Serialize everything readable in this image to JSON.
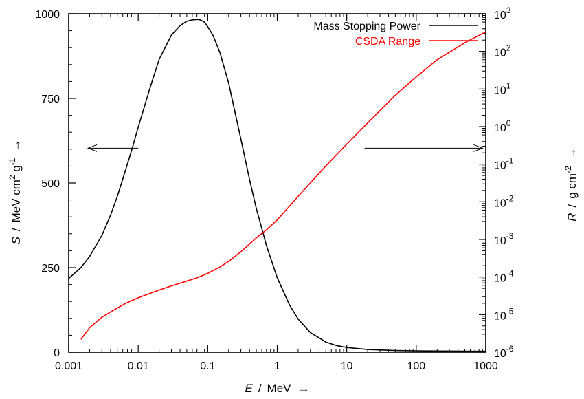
{
  "chart_data": {
    "type": "line",
    "x_scale": "log",
    "x_ticks": [
      "0.001",
      "0.01",
      "0.1",
      "1",
      "10",
      "100",
      "1000"
    ],
    "x_tick_values": [
      0.001,
      0.01,
      0.1,
      1,
      10,
      100,
      1000
    ],
    "xlim": [
      0.001,
      1000
    ],
    "ylim_left": [
      0,
      1000
    ],
    "y_left_ticks": [
      "0",
      "250",
      "500",
      "750",
      "1000"
    ],
    "y_left_tick_values": [
      0,
      250,
      500,
      750,
      1000
    ],
    "ylim_right": [
      1e-06,
      1000
    ],
    "y_right_scale": "log",
    "y_right_tick_exponents": [
      "-6",
      "-5",
      "-4",
      "-3",
      "-2",
      "-1",
      "0",
      "1",
      "2",
      "3"
    ],
    "y_right_tick_base": "10",
    "grid": false,
    "legend_position": "top-right",
    "xlabel": {
      "var": "E",
      "sep": "/",
      "unit": "MeV",
      "arrow": "→"
    },
    "ylabel_left": {
      "var": "S",
      "sep": "/",
      "unit_pre": "MeV cm",
      "sup1": "2",
      "unit_mid": " g",
      "sup2": "-1",
      "arrow": "→"
    },
    "ylabel_right": {
      "var": "R",
      "sep": "/",
      "unit_pre": "g cm",
      "sup": "-2",
      "arrow": "→"
    },
    "series": [
      {
        "name": "Mass Stopping Power",
        "color": "#000000",
        "axis": "left",
        "x": [
          0.001,
          0.0015,
          0.002,
          0.003,
          0.004,
          0.005,
          0.006,
          0.008,
          0.01,
          0.015,
          0.02,
          0.03,
          0.04,
          0.05,
          0.06,
          0.07,
          0.075,
          0.08,
          0.09,
          0.1,
          0.12,
          0.15,
          0.2,
          0.3,
          0.4,
          0.5,
          0.7,
          1,
          1.5,
          2,
          3,
          5,
          7,
          10,
          20,
          50,
          100,
          200,
          500,
          1000
        ],
        "y": [
          218,
          250,
          283,
          345,
          405,
          460,
          512,
          595,
          665,
          785,
          865,
          937,
          965,
          978,
          982,
          983,
          983,
          981,
          975,
          962,
          935,
          885,
          795,
          630,
          510,
          425,
          315,
          220,
          140,
          98,
          58,
          30,
          20,
          14,
          8,
          5,
          4,
          3.5,
          3,
          2.8
        ]
      },
      {
        "name": "CSDA Range",
        "color": "#ff0000",
        "axis": "right",
        "x": [
          0.0015,
          0.002,
          0.003,
          0.005,
          0.007,
          0.01,
          0.02,
          0.03,
          0.05,
          0.07,
          0.1,
          0.15,
          0.2,
          0.3,
          0.5,
          0.7,
          1,
          2,
          5,
          10,
          20,
          50,
          100,
          200,
          500,
          1000
        ],
        "y": [
          2.2e-06,
          4.5e-06,
          8.5e-06,
          1.5e-05,
          2.1e-05,
          2.8e-05,
          4.5e-05,
          5.8e-05,
          7.8e-05,
          9.5e-05,
          0.000125,
          0.000185,
          0.00026,
          0.00047,
          0.0011,
          0.0018,
          0.0033,
          0.014,
          0.09,
          0.34,
          1.25,
          6.8,
          21,
          60,
          170,
          330
        ]
      }
    ],
    "annotations": [
      {
        "type": "arrow",
        "direction": "left",
        "x_from": 0.01,
        "x_to": 0.0019,
        "y_left": 603
      },
      {
        "type": "arrow",
        "direction": "right",
        "x_from": 18,
        "x_to": 900,
        "y_left": 603
      }
    ]
  }
}
